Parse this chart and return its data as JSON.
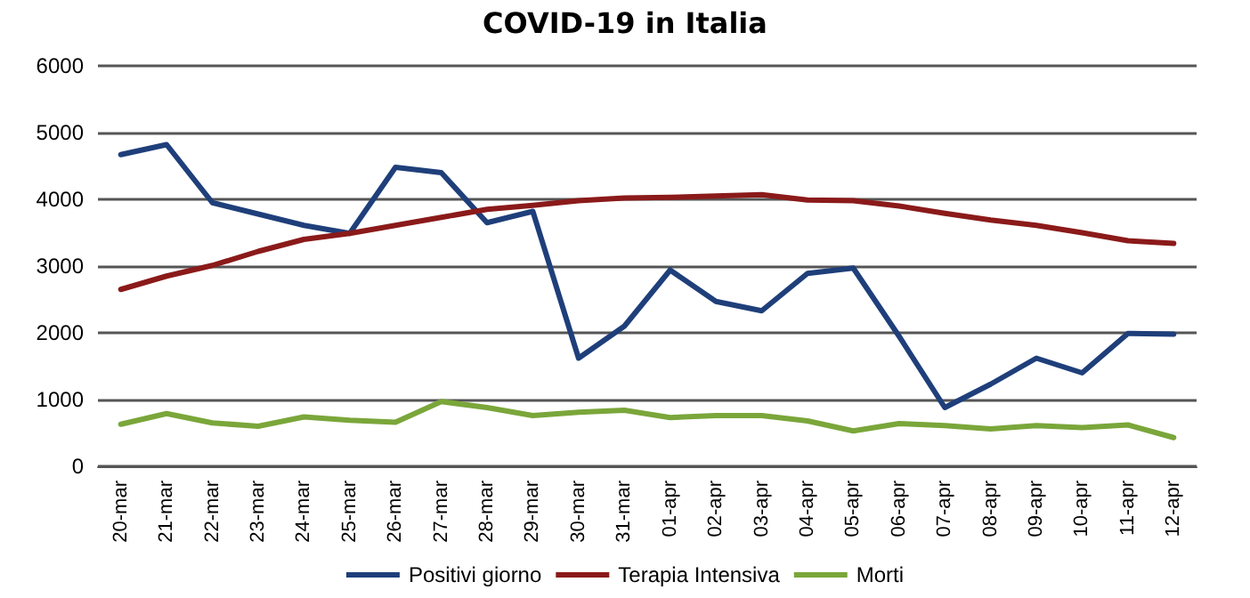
{
  "chart_data": {
    "type": "line",
    "title": "COVID-19 in Italia",
    "categories": [
      "20-mar",
      "21-mar",
      "22-mar",
      "23-mar",
      "24-mar",
      "25-mar",
      "26-mar",
      "27-mar",
      "28-mar",
      "29-mar",
      "30-mar",
      "31-mar",
      "01-apr",
      "02-apr",
      "03-apr",
      "04-apr",
      "05-apr",
      "06-apr",
      "07-apr",
      "08-apr",
      "09-apr",
      "10-apr",
      "11-apr",
      "12-apr"
    ],
    "series": [
      {
        "name": "Positivi giorno",
        "color": "#1f3f7a",
        "values": [
          4670,
          4820,
          3950,
          3780,
          3610,
          3490,
          4480,
          4400,
          3650,
          3820,
          1620,
          2100,
          2940,
          2470,
          2330,
          2890,
          2970,
          1950,
          880,
          1230,
          1620,
          1400,
          1990,
          1980
        ]
      },
      {
        "name": "Terapia Intensiva",
        "color": "#8b1a1a",
        "values": [
          2650,
          2850,
          3010,
          3220,
          3400,
          3490,
          3610,
          3730,
          3850,
          3910,
          3980,
          4020,
          4030,
          4050,
          4070,
          3990,
          3980,
          3900,
          3790,
          3690,
          3610,
          3500,
          3380,
          3340
        ]
      },
      {
        "name": "Morti",
        "color": "#7aa63a",
        "values": [
          630,
          790,
          650,
          600,
          740,
          690,
          660,
          970,
          880,
          760,
          810,
          840,
          730,
          760,
          760,
          680,
          530,
          640,
          610,
          560,
          610,
          580,
          620,
          430
        ]
      }
    ],
    "ylim": [
      0,
      6000
    ],
    "yticks": [
      0,
      1000,
      2000,
      3000,
      4000,
      5000,
      6000
    ],
    "grid": "y",
    "legend": "bottom",
    "marker": "none",
    "line_style": "solid"
  }
}
